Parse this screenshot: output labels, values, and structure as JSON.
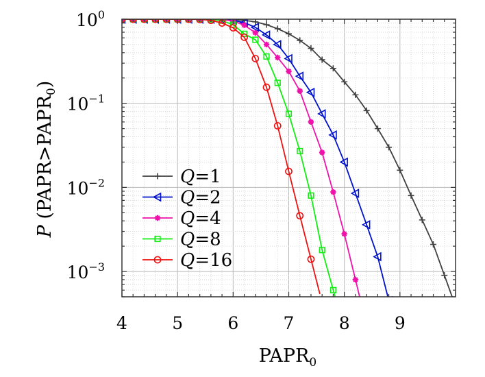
{
  "chart_data": {
    "type": "line",
    "title": "",
    "xlabel": "PAPR",
    "xlabel_sub": "0",
    "ylabel_italic": "P",
    "ylabel": " (PAPR>PAPR",
    "ylabel_sub": "0",
    "ylabel_close": ")",
    "xlim": [
      4,
      10
    ],
    "ylim": [
      0.0005,
      1
    ],
    "y_scale": "log",
    "grid": true,
    "legend_position": "lower-left",
    "x_ticks": [
      4,
      5,
      6,
      7,
      8,
      9
    ],
    "x_tick_labels": [
      "4",
      "5",
      "6",
      "7",
      "8",
      "9"
    ],
    "y_ticks": [
      {
        "value": 1,
        "base": "10",
        "exp": "0"
      },
      {
        "value": 0.1,
        "base": "10",
        "exp": "−1"
      },
      {
        "value": 0.01,
        "base": "10",
        "exp": "−2"
      },
      {
        "value": 0.001,
        "base": "10",
        "exp": "−3"
      }
    ],
    "series": [
      {
        "name": "Q=1",
        "legend_var": "Q",
        "legend_val": "=1",
        "color": "#404040",
        "marker": "plus",
        "x": [
          4.0,
          4.2,
          4.4,
          4.6,
          4.8,
          5.0,
          5.2,
          5.4,
          5.6,
          5.8,
          6.0,
          6.2,
          6.4,
          6.6,
          6.8,
          7.0,
          7.2,
          7.4,
          7.6,
          7.8,
          8.0,
          8.2,
          8.4,
          8.6,
          8.8,
          9.0,
          9.2,
          9.4,
          9.6,
          9.8
        ],
        "y": [
          1,
          1,
          1,
          1,
          1,
          1,
          1,
          1,
          1,
          0.999,
          0.99,
          0.97,
          0.93,
          0.86,
          0.77,
          0.67,
          0.56,
          0.45,
          0.33,
          0.26,
          0.18,
          0.126,
          0.082,
          0.05,
          0.03,
          0.016,
          0.008,
          0.0041,
          0.0021,
          0.0009
        ]
      },
      {
        "name": "Q=2",
        "legend_var": "Q",
        "legend_val": "=2",
        "color": "#0011cc",
        "marker": "triangle-left",
        "x": [
          4.0,
          4.2,
          4.4,
          4.6,
          4.8,
          5.0,
          5.2,
          5.4,
          5.6,
          5.8,
          6.0,
          6.2,
          6.4,
          6.6,
          6.8,
          7.0,
          7.2,
          7.4,
          7.6,
          7.8,
          8.0,
          8.2,
          8.4,
          8.6,
          8.8
        ],
        "y": [
          1,
          1,
          1,
          1,
          1,
          1,
          1,
          1,
          1,
          0.995,
          0.97,
          0.91,
          0.8,
          0.65,
          0.5,
          0.34,
          0.21,
          0.135,
          0.075,
          0.042,
          0.02,
          0.0085,
          0.0036,
          0.0015,
          0.00045
        ]
      },
      {
        "name": "Q=4",
        "legend_var": "Q",
        "legend_val": "=4",
        "color": "#ee11aa",
        "marker": "star",
        "x": [
          4.0,
          4.2,
          4.4,
          4.6,
          4.8,
          5.0,
          5.2,
          5.4,
          5.6,
          5.8,
          6.0,
          6.2,
          6.4,
          6.6,
          6.8,
          7.0,
          7.2,
          7.4,
          7.6,
          7.8,
          8.0,
          8.2
        ],
        "y": [
          1,
          1,
          1,
          1,
          1,
          1,
          1,
          1,
          1,
          0.99,
          0.95,
          0.85,
          0.69,
          0.5,
          0.35,
          0.24,
          0.14,
          0.06,
          0.026,
          0.0088,
          0.0028,
          0.0008
        ]
      },
      {
        "name": "Q=8",
        "legend_var": "Q",
        "legend_val": "=8",
        "color": "#11ee11",
        "marker": "square",
        "x": [
          4.0,
          4.2,
          4.4,
          4.6,
          4.8,
          5.0,
          5.2,
          5.4,
          5.6,
          5.8,
          6.0,
          6.2,
          6.4,
          6.6,
          6.8,
          7.0,
          7.2,
          7.4,
          7.6,
          7.8
        ],
        "y": [
          1,
          1,
          1,
          1,
          1,
          1,
          1,
          1,
          0.995,
          0.96,
          0.86,
          0.67,
          0.57,
          0.36,
          0.175,
          0.075,
          0.027,
          0.008,
          0.0018,
          0.0006
        ]
      },
      {
        "name": "Q=16",
        "legend_var": "Q",
        "legend_val": "=16",
        "color": "#ee1111",
        "marker": "circle",
        "x": [
          4.0,
          4.2,
          4.4,
          4.6,
          4.8,
          5.0,
          5.2,
          5.4,
          5.6,
          5.8,
          6.0,
          6.2,
          6.4,
          6.6,
          6.8,
          7.0,
          7.2,
          7.4
        ],
        "y": [
          1,
          1,
          1,
          1,
          1,
          1,
          1,
          0.995,
          0.97,
          0.9,
          0.79,
          0.61,
          0.34,
          0.155,
          0.054,
          0.0155,
          0.0046,
          0.0014
        ]
      }
    ]
  }
}
